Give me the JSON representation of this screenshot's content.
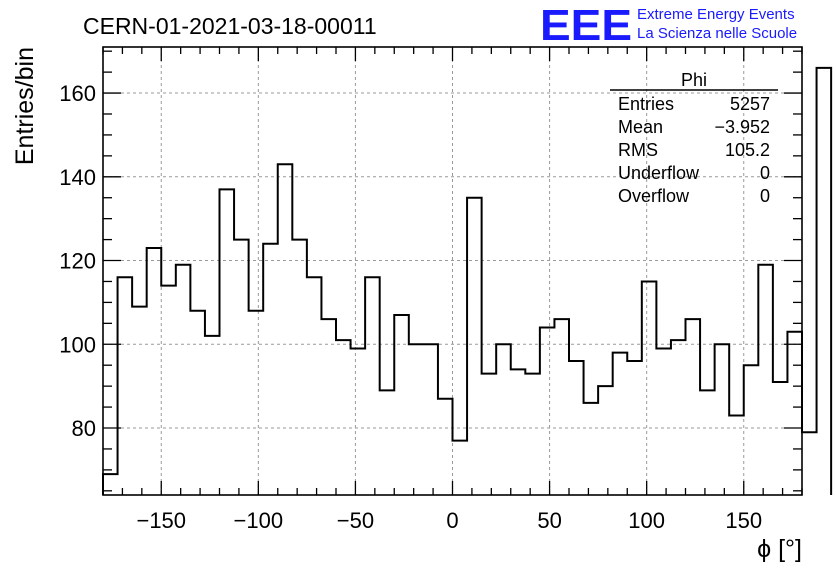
{
  "title": "CERN-01-2021-03-18-00011",
  "logo": {
    "mark": "EEE",
    "line1": "Extreme Energy Events",
    "line2": "La Scienza nelle Scuole",
    "color": "#1a1aff"
  },
  "stats": {
    "name": "Phi",
    "rows": [
      {
        "label": "Entries",
        "value": "5257"
      },
      {
        "label": "Mean",
        "value": "−3.952"
      },
      {
        "label": "RMS",
        "value": "105.2"
      },
      {
        "label": "Underflow",
        "value": "0"
      },
      {
        "label": "Overflow",
        "value": "0"
      }
    ]
  },
  "chart_data": {
    "type": "bar",
    "title": "CERN-01-2021-03-18-00011",
    "xlabel": "ϕ [°]",
    "ylabel": "Entries/bin",
    "xlim": [
      -180,
      180
    ],
    "ylim": [
      64,
      171
    ],
    "grid": true,
    "bin_width": 7.5,
    "bin_edges_start": -180,
    "values": [
      69,
      116,
      109,
      123,
      114,
      119,
      108,
      102,
      137,
      125,
      108,
      124,
      143,
      125,
      116,
      106,
      101,
      99,
      116,
      89,
      107,
      100,
      100,
      87,
      77,
      135,
      93,
      100,
      94,
      93,
      104,
      106,
      96,
      86,
      90,
      98,
      96,
      115,
      99,
      101,
      106,
      89,
      100,
      83,
      95,
      119,
      91,
      103,
      79,
      166
    ],
    "xticks": [
      -150,
      -100,
      -50,
      0,
      50,
      100,
      150
    ],
    "xtick_labels": [
      "−150",
      "−100",
      "−50",
      "0",
      "50",
      "100",
      "150"
    ],
    "yticks": [
      80,
      100,
      120,
      140,
      160
    ],
    "ytick_labels": [
      "80",
      "100",
      "120",
      "140",
      "160"
    ]
  }
}
